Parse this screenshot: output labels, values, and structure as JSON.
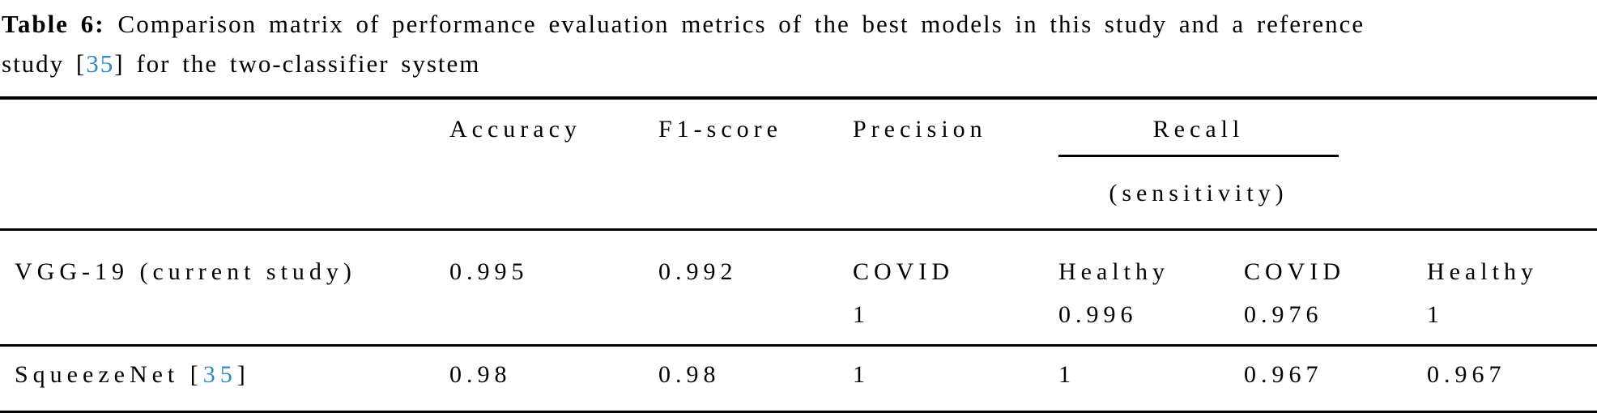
{
  "caption": {
    "line1_label": "Table 6:",
    "line1_text": "Comparison matrix of performance evaluation metrics of the best models in this study and a reference",
    "line2_before": "study [",
    "line2_ref": "35",
    "line2_after": "] for the two-classifier system"
  },
  "header": {
    "accuracy": "Accuracy",
    "f1_score": "F1-score",
    "precision": "Precision",
    "recall": "Recall",
    "recall_sub": "(sensitivity)"
  },
  "rows": [
    {
      "model": "VGG-19 (current study)",
      "accuracy": "0.995",
      "f1_score": "0.992",
      "cells": [
        {
          "label": "COVID",
          "value": "1"
        },
        {
          "label": "Healthy",
          "value": "0.996"
        },
        {
          "label": "COVID",
          "value": "0.976"
        },
        {
          "label": "Healthy",
          "value": "1"
        }
      ]
    },
    {
      "model_before": "SqueezeNet [",
      "model_ref": "35",
      "model_after": "]",
      "accuracy": "0.98",
      "f1_score": "0.98",
      "values": [
        "1",
        "1",
        "0.967",
        "0.967"
      ]
    }
  ],
  "colors": {
    "text": "#000000",
    "reference_link_blue": "#2e89c4"
  }
}
